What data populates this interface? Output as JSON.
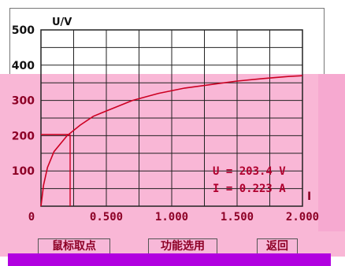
{
  "chart_data": {
    "type": "line",
    "xlabel": "I",
    "ylabel": "U/V",
    "xlim": [
      0,
      2.0
    ],
    "ylim": [
      0,
      500
    ],
    "x_ticks": [
      "0",
      "0.500",
      "1.000",
      "1.500",
      "2.000"
    ],
    "y_ticks": [
      "100",
      "200",
      "300",
      "400",
      "500"
    ],
    "series": [
      {
        "x": [
          0.0,
          0.02,
          0.05,
          0.1,
          0.2,
          0.3,
          0.4,
          0.5,
          0.7,
          0.9,
          1.1,
          1.3,
          1.5,
          1.7,
          1.9,
          2.0
        ],
        "y": [
          0,
          60,
          110,
          155,
          200,
          230,
          255,
          270,
          300,
          320,
          335,
          345,
          355,
          362,
          368,
          370
        ]
      }
    ],
    "marker": {
      "x": 0.223,
      "y": 203.4
    },
    "grid": true
  },
  "readout": {
    "u_text": "U = 203.4  V",
    "i_text": "I = 0.223   A"
  },
  "buttons": {
    "pick_point": "鼠标取点",
    "fit": "功能选用",
    "back": "返回"
  },
  "colors": {
    "curve": "#cc0022",
    "grid": "#222222",
    "label": "#8d0026"
  }
}
